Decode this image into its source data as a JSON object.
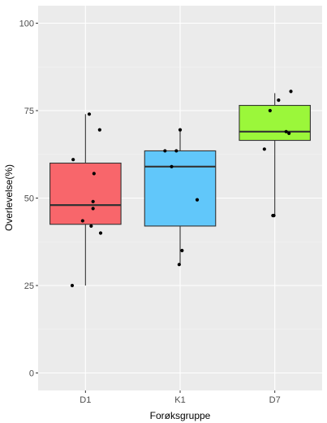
{
  "chart_data": {
    "type": "box",
    "title": "",
    "xlabel": "Forøksgruppe",
    "ylabel": "Overlevelse(%)",
    "ylim": [
      -5,
      105
    ],
    "yticks": [
      0,
      25,
      50,
      75,
      100
    ],
    "ytick_labels": [
      "0",
      "25",
      "50",
      "75",
      "100"
    ],
    "grid": true,
    "legend": "none",
    "categories": [
      "D1",
      "K1",
      "D7"
    ],
    "boxes": [
      {
        "category": "D1",
        "color": "#F8666B",
        "whisker_low": 25,
        "q1": 42.5,
        "median": 48,
        "q3": 60,
        "whisker_high": 74
      },
      {
        "category": "K1",
        "color": "#61C7FA",
        "whisker_low": 31,
        "q1": 42,
        "median": 59,
        "q3": 63.5,
        "whisker_high": 69.5
      },
      {
        "category": "D7",
        "color": "#9BF73A",
        "whisker_low": 45,
        "q1": 66.5,
        "median": 69,
        "q3": 76.5,
        "whisker_high": 80
      }
    ],
    "points": [
      {
        "category": "D1",
        "offset": 0.04,
        "value": 74
      },
      {
        "category": "D1",
        "offset": 0.15,
        "value": 69.5
      },
      {
        "category": "D1",
        "offset": -0.13,
        "value": 61
      },
      {
        "category": "D1",
        "offset": 0.09,
        "value": 57
      },
      {
        "category": "D1",
        "offset": 0.08,
        "value": 49
      },
      {
        "category": "D1",
        "offset": 0.08,
        "value": 47
      },
      {
        "category": "D1",
        "offset": -0.03,
        "value": 43.5
      },
      {
        "category": "D1",
        "offset": 0.06,
        "value": 42
      },
      {
        "category": "D1",
        "offset": 0.16,
        "value": 40
      },
      {
        "category": "D1",
        "offset": -0.14,
        "value": 25
      },
      {
        "category": "K1",
        "offset": -0.16,
        "value": 63.5
      },
      {
        "category": "K1",
        "offset": -0.04,
        "value": 63.5
      },
      {
        "category": "K1",
        "offset": 0.0,
        "value": 69.5
      },
      {
        "category": "K1",
        "offset": -0.09,
        "value": 59
      },
      {
        "category": "K1",
        "offset": 0.18,
        "value": 49.5
      },
      {
        "category": "K1",
        "offset": 0.02,
        "value": 35
      },
      {
        "category": "K1",
        "offset": -0.01,
        "value": 31
      },
      {
        "category": "D7",
        "offset": 0.17,
        "value": 80.5
      },
      {
        "category": "D7",
        "offset": 0.04,
        "value": 78
      },
      {
        "category": "D7",
        "offset": -0.05,
        "value": 75
      },
      {
        "category": "D7",
        "offset": 0.12,
        "value": 69
      },
      {
        "category": "D7",
        "offset": 0.15,
        "value": 68.5
      },
      {
        "category": "D7",
        "offset": -0.11,
        "value": 64
      },
      {
        "category": "D7",
        "offset": -0.02,
        "value": 45
      },
      {
        "category": "D7",
        "offset": -0.01,
        "value": 45
      }
    ]
  }
}
